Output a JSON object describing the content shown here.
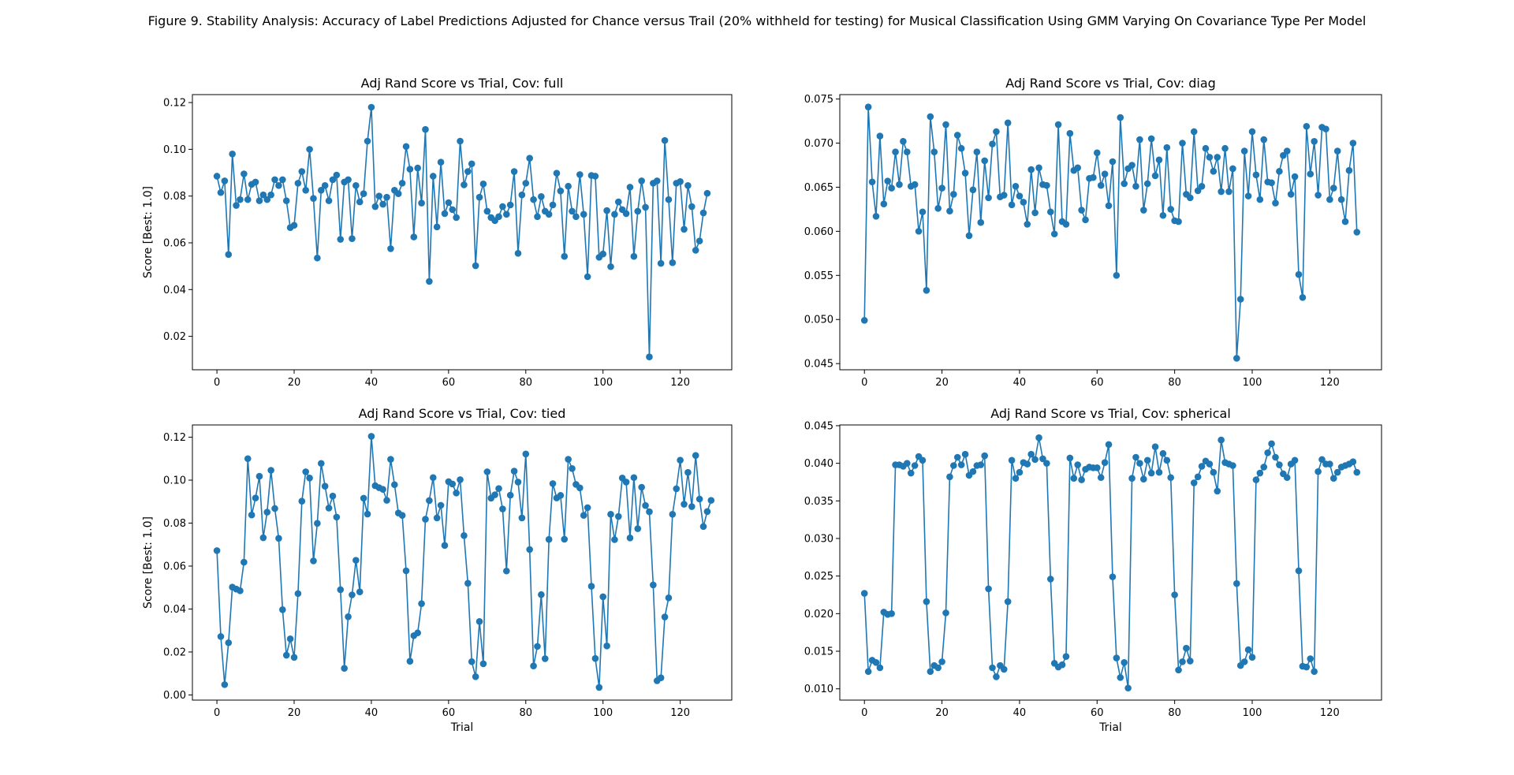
{
  "figure": {
    "title": "Figure 9. Stability Analysis: Accuracy of Label Predictions Adjusted for Chance versus Trail (20% withheld for testing) for Musical Classification Using GMM Varying On Covariance Type Per Model"
  },
  "colors": {
    "series": "#1f77b4",
    "axes": "#000000",
    "background": "#ffffff"
  },
  "chart_data": [
    {
      "type": "line",
      "title": "Adj Rand Score vs Trial, Cov: full",
      "xlabel": "",
      "ylabel": "Score [Best: 1.0]",
      "xlim": [
        -6.35,
        133.35
      ],
      "ylim": [
        0.0057,
        0.1234
      ],
      "xticks": [
        0,
        20,
        40,
        60,
        80,
        100,
        120
      ],
      "xtick_labels": [
        "0",
        "20",
        "40",
        "60",
        "80",
        "100",
        "120"
      ],
      "yticks": [
        0.02,
        0.04,
        0.06,
        0.08,
        0.1,
        0.12
      ],
      "ytick_labels": [
        "0.02",
        "0.04",
        "0.06",
        "0.08",
        "0.10",
        "0.12"
      ],
      "grid": false,
      "markers": true,
      "y": [
        0.0885,
        0.0815,
        0.0865,
        0.055,
        0.098,
        0.076,
        0.0785,
        0.0895,
        0.0785,
        0.085,
        0.086,
        0.078,
        0.0805,
        0.0785,
        0.0805,
        0.087,
        0.0845,
        0.087,
        0.078,
        0.0665,
        0.0675,
        0.0855,
        0.0905,
        0.0825,
        0.1,
        0.079,
        0.0535,
        0.0825,
        0.0845,
        0.078,
        0.087,
        0.089,
        0.0615,
        0.086,
        0.087,
        0.0618,
        0.0845,
        0.0775,
        0.081,
        0.1035,
        0.118,
        0.0755,
        0.08,
        0.0765,
        0.0795,
        0.0575,
        0.0825,
        0.081,
        0.0855,
        0.1012,
        0.0915,
        0.0625,
        0.092,
        0.077,
        0.1085,
        0.0435,
        0.0885,
        0.0668,
        0.0945,
        0.0725,
        0.0772,
        0.0742,
        0.0708,
        0.1035,
        0.0848,
        0.0905,
        0.0938,
        0.0502,
        0.0795,
        0.0852,
        0.0735,
        0.0708,
        0.0695,
        0.0712,
        0.0755,
        0.0722,
        0.0762,
        0.0905,
        0.0555,
        0.0805,
        0.0855,
        0.0962,
        0.0785,
        0.0712,
        0.0798,
        0.0735,
        0.0722,
        0.0762,
        0.0898,
        0.0822,
        0.0542,
        0.0842,
        0.0735,
        0.0712,
        0.0892,
        0.0722,
        0.0455,
        0.0888,
        0.0885,
        0.0538,
        0.0552,
        0.0738,
        0.0498,
        0.0722,
        0.0775,
        0.0742,
        0.0725,
        0.0838,
        0.0542,
        0.0735,
        0.0865,
        0.0752,
        0.0112,
        0.0855,
        0.0865,
        0.0512,
        0.1038,
        0.0785,
        0.0515,
        0.0855,
        0.0862,
        0.0658,
        0.0845,
        0.0755,
        0.0568,
        0.0608,
        0.0728,
        0.0812
      ]
    },
    {
      "type": "line",
      "title": "Adj Rand Score vs Trial, Cov: diag",
      "xlabel": "",
      "ylabel": "",
      "xlim": [
        -6.35,
        133.35
      ],
      "ylim": [
        0.0443,
        0.0755
      ],
      "xticks": [
        0,
        20,
        40,
        60,
        80,
        100,
        120
      ],
      "xtick_labels": [
        "0",
        "20",
        "40",
        "60",
        "80",
        "100",
        "120"
      ],
      "yticks": [
        0.045,
        0.05,
        0.055,
        0.06,
        0.065,
        0.07,
        0.075
      ],
      "ytick_labels": [
        "0.045",
        "0.050",
        "0.055",
        "0.060",
        "0.065",
        "0.070",
        "0.075"
      ],
      "grid": false,
      "markers": true,
      "y": [
        0.0499,
        0.0741,
        0.0656,
        0.0617,
        0.0708,
        0.0631,
        0.0657,
        0.0649,
        0.069,
        0.0653,
        0.0702,
        0.069,
        0.0651,
        0.0653,
        0.06,
        0.0622,
        0.0533,
        0.073,
        0.069,
        0.0626,
        0.0649,
        0.0721,
        0.0623,
        0.0642,
        0.0709,
        0.0694,
        0.0666,
        0.0595,
        0.0647,
        0.069,
        0.061,
        0.068,
        0.0638,
        0.0699,
        0.0713,
        0.0639,
        0.0641,
        0.0723,
        0.063,
        0.0651,
        0.064,
        0.0633,
        0.0608,
        0.067,
        0.0621,
        0.0672,
        0.0653,
        0.0652,
        0.0622,
        0.0597,
        0.0721,
        0.0611,
        0.0608,
        0.0711,
        0.0669,
        0.0672,
        0.0624,
        0.0613,
        0.066,
        0.0661,
        0.0689,
        0.0652,
        0.0665,
        0.0629,
        0.0679,
        0.055,
        0.0729,
        0.0654,
        0.0671,
        0.0675,
        0.0651,
        0.0704,
        0.0624,
        0.0654,
        0.0705,
        0.0663,
        0.0681,
        0.0618,
        0.0695,
        0.0625,
        0.0612,
        0.0611,
        0.07,
        0.0642,
        0.0638,
        0.0713,
        0.0646,
        0.0651,
        0.0694,
        0.0684,
        0.0668,
        0.0684,
        0.0645,
        0.0694,
        0.0645,
        0.0671,
        0.0456,
        0.0523,
        0.0691,
        0.064,
        0.0713,
        0.0664,
        0.0636,
        0.0704,
        0.0656,
        0.0655,
        0.0632,
        0.0668,
        0.0686,
        0.0691,
        0.0642,
        0.0662,
        0.0551,
        0.0525,
        0.0719,
        0.0665,
        0.0702,
        0.0641,
        0.0718,
        0.0716,
        0.0636,
        0.0649,
        0.0691,
        0.0636,
        0.0611,
        0.0669,
        0.07,
        0.0599
      ]
    },
    {
      "type": "line",
      "title": "Adj Rand Score vs Trial, Cov: tied",
      "xlabel": "Trial",
      "ylabel": "Score [Best: 1.0]",
      "xlim": [
        -6.35,
        133.35
      ],
      "ylim": [
        -0.0024,
        0.1257
      ],
      "xticks": [
        0,
        20,
        40,
        60,
        80,
        100,
        120
      ],
      "xtick_labels": [
        "0",
        "20",
        "40",
        "60",
        "80",
        "100",
        "120"
      ],
      "yticks": [
        0.0,
        0.02,
        0.04,
        0.06,
        0.08,
        0.1,
        0.12
      ],
      "ytick_labels": [
        "0.00",
        "0.02",
        "0.04",
        "0.06",
        "0.08",
        "0.10",
        "0.12"
      ],
      "grid": false,
      "markers": true,
      "y": [
        0.0672,
        0.0272,
        0.0048,
        0.0243,
        0.0502,
        0.0493,
        0.0485,
        0.0618,
        0.11,
        0.0838,
        0.0917,
        0.1018,
        0.0732,
        0.0851,
        0.1046,
        0.0868,
        0.0729,
        0.0397,
        0.0185,
        0.0261,
        0.0175,
        0.0472,
        0.0902,
        0.1039,
        0.101,
        0.0624,
        0.0799,
        0.1078,
        0.0972,
        0.087,
        0.0926,
        0.0828,
        0.049,
        0.0124,
        0.0364,
        0.0466,
        0.0627,
        0.048,
        0.0916,
        0.0842,
        0.1204,
        0.0974,
        0.0965,
        0.0957,
        0.0906,
        0.1097,
        0.0979,
        0.0847,
        0.0836,
        0.0578,
        0.0157,
        0.0276,
        0.0289,
        0.0425,
        0.0818,
        0.0905,
        0.1012,
        0.0824,
        0.0883,
        0.0696,
        0.0993,
        0.0982,
        0.094,
        0.1002,
        0.0742,
        0.052,
        0.0155,
        0.0085,
        0.0342,
        0.0145,
        0.1039,
        0.0916,
        0.0932,
        0.0961,
        0.0866,
        0.0577,
        0.093,
        0.1042,
        0.0991,
        0.0824,
        0.1122,
        0.0677,
        0.0135,
        0.0226,
        0.0467,
        0.0169,
        0.0724,
        0.0984,
        0.0917,
        0.0929,
        0.0725,
        0.1097,
        0.1054,
        0.098,
        0.0964,
        0.0836,
        0.0872,
        0.0506,
        0.017,
        0.0035,
        0.0457,
        0.0228,
        0.0841,
        0.0723,
        0.0831,
        0.101,
        0.0991,
        0.0731,
        0.1012,
        0.0774,
        0.0967,
        0.0882,
        0.0853,
        0.0512,
        0.0066,
        0.008,
        0.0363,
        0.0452,
        0.0841,
        0.096,
        0.1093,
        0.0888,
        0.1036,
        0.0877,
        0.1115,
        0.0912,
        0.0784,
        0.0854,
        0.0906
      ]
    },
    {
      "type": "line",
      "title": "Adj Rand Score vs Trial, Cov: spherical",
      "xlabel": "Trial",
      "ylabel": "",
      "xlim": [
        -6.35,
        133.35
      ],
      "ylim": [
        0.0085,
        0.0451
      ],
      "xticks": [
        0,
        20,
        40,
        60,
        80,
        100,
        120
      ],
      "xtick_labels": [
        "0",
        "20",
        "40",
        "60",
        "80",
        "100",
        "120"
      ],
      "yticks": [
        0.01,
        0.015,
        0.02,
        0.025,
        0.03,
        0.035,
        0.04,
        0.045
      ],
      "ytick_labels": [
        "0.010",
        "0.015",
        "0.020",
        "0.025",
        "0.030",
        "0.035",
        "0.040",
        "0.045"
      ],
      "grid": false,
      "markers": true,
      "y": [
        0.0227,
        0.0123,
        0.0138,
        0.0135,
        0.0128,
        0.0202,
        0.0199,
        0.02,
        0.0398,
        0.0398,
        0.0396,
        0.04,
        0.0387,
        0.0397,
        0.0409,
        0.0404,
        0.0216,
        0.0123,
        0.0131,
        0.0128,
        0.0136,
        0.0201,
        0.0382,
        0.0397,
        0.0408,
        0.0398,
        0.0412,
        0.0384,
        0.0389,
        0.0397,
        0.0398,
        0.041,
        0.0233,
        0.0128,
        0.0116,
        0.0131,
        0.0126,
        0.0216,
        0.0404,
        0.038,
        0.0388,
        0.0401,
        0.0399,
        0.0412,
        0.0405,
        0.0434,
        0.0406,
        0.04,
        0.0246,
        0.0134,
        0.0129,
        0.0132,
        0.0143,
        0.0407,
        0.038,
        0.0398,
        0.0378,
        0.0392,
        0.0395,
        0.0394,
        0.0394,
        0.0381,
        0.0401,
        0.0425,
        0.0249,
        0.0141,
        0.0115,
        0.0135,
        0.0101,
        0.038,
        0.0408,
        0.04,
        0.0379,
        0.0404,
        0.0387,
        0.0422,
        0.0388,
        0.0413,
        0.0404,
        0.0381,
        0.0225,
        0.0125,
        0.0136,
        0.0154,
        0.0137,
        0.0374,
        0.0382,
        0.0396,
        0.0403,
        0.0399,
        0.0388,
        0.0363,
        0.0431,
        0.0401,
        0.0399,
        0.0397,
        0.024,
        0.0131,
        0.0136,
        0.0152,
        0.0142,
        0.0378,
        0.0387,
        0.0395,
        0.0414,
        0.0426,
        0.0408,
        0.0398,
        0.0386,
        0.0381,
        0.0399,
        0.0404,
        0.0257,
        0.013,
        0.0129,
        0.014,
        0.0123,
        0.0389,
        0.0405,
        0.0399,
        0.0399,
        0.038,
        0.0388,
        0.0395,
        0.0397,
        0.0399,
        0.0402,
        0.0388
      ]
    }
  ]
}
